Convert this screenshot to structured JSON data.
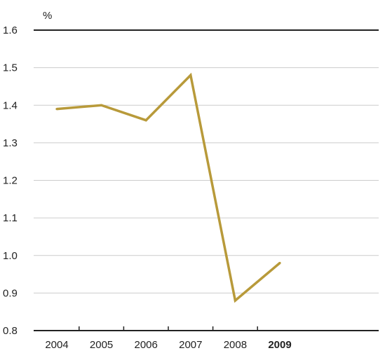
{
  "chart_data": {
    "type": "line",
    "title": "",
    "xlabel": "",
    "ylabel": "%",
    "x": [
      "2004",
      "2005",
      "2006",
      "2007",
      "2008",
      "2009"
    ],
    "highlighted_category": "2009",
    "series": [
      {
        "values": [
          1.39,
          1.4,
          1.36,
          1.48,
          0.88,
          0.98
        ],
        "color": "#b89a3a"
      }
    ],
    "ylim": [
      0.8,
      1.6
    ],
    "yticks": [
      "0.8",
      "0.9",
      "1.0",
      "1.1",
      "1.2",
      "1.3",
      "1.4",
      "1.5",
      "1.6"
    ],
    "grid": true,
    "legend": "none"
  }
}
